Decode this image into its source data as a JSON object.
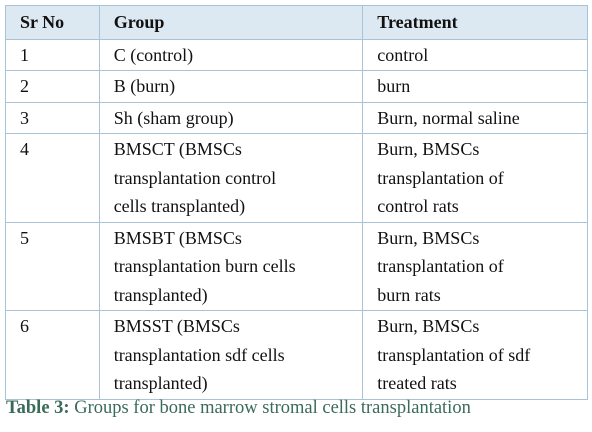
{
  "table": {
    "header": [
      "Sr No",
      "Group",
      "Treatment"
    ],
    "rows": [
      [
        [
          "1"
        ],
        [
          "C (control)"
        ],
        [
          "control"
        ]
      ],
      [
        [
          "2"
        ],
        [
          "B (burn)"
        ],
        [
          "burn"
        ]
      ],
      [
        [
          "3"
        ],
        [
          "Sh (sham group)"
        ],
        [
          "Burn, normal saline"
        ]
      ],
      [
        [
          "4"
        ],
        [
          "BMSCT (BMSCs",
          "transplantation control",
          "cells transplanted)"
        ],
        [
          "Burn, BMSCs",
          "transplantation of",
          "control rats"
        ]
      ],
      [
        [
          "5"
        ],
        [
          "BMSBT (BMSCs",
          "transplantation burn cells",
          "transplanted)"
        ],
        [
          "Burn, BMSCs",
          "transplantation of",
          "burn rats"
        ]
      ],
      [
        [
          "6"
        ],
        [
          "BMSST (BMSCs",
          "transplantation sdf cells",
          "transplanted)"
        ],
        [
          "Burn, BMSCs",
          "transplantation of sdf",
          "treated rats"
        ]
      ]
    ]
  },
  "caption": {
    "label": "Table 3:",
    "text": "Groups for bone marrow stromal cells transplantation"
  }
}
